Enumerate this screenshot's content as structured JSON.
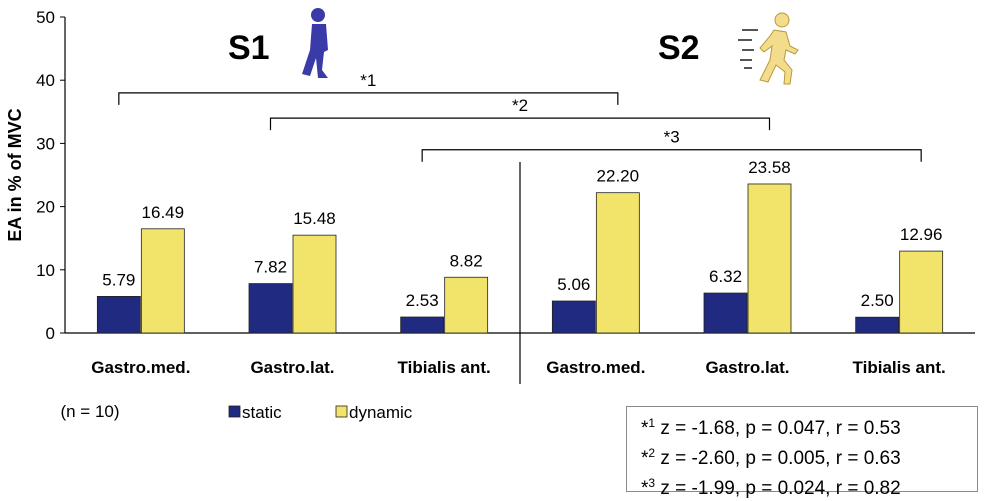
{
  "chart_data": {
    "type": "bar",
    "ylabel": "EA in % of MVC",
    "ylim": [
      0,
      50
    ],
    "yticks": [
      0,
      10,
      20,
      30,
      40,
      50
    ],
    "groups": [
      {
        "label": "S1",
        "figure_icon": "walking-person-icon",
        "figure_color": "#3a3aa8"
      },
      {
        "label": "S2",
        "figure_icon": "running-person-icon",
        "figure_color": "#f3dc8c"
      }
    ],
    "categories": [
      "Gastro.med.",
      "Gastro.lat.",
      "Tibialis ant.",
      "Gastro.med.",
      "Gastro.lat.",
      "Tibialis ant."
    ],
    "series": [
      {
        "name": "static",
        "color": "#1f2a80",
        "values": [
          5.79,
          7.82,
          2.53,
          5.06,
          6.32,
          2.5
        ],
        "labels": [
          "5.79",
          "7.82",
          "2.53",
          "5.06",
          "6.32",
          "2.50"
        ]
      },
      {
        "name": "dynamic",
        "color": "#f2e46a",
        "values": [
          16.49,
          15.48,
          8.82,
          22.2,
          23.58,
          12.96
        ],
        "labels": [
          "16.49",
          "15.48",
          "8.82",
          "22.20",
          "23.58",
          "12.96"
        ]
      }
    ],
    "brackets": [
      {
        "label": "*1",
        "from": 0,
        "to": 3,
        "y": 38
      },
      {
        "label": "*2",
        "from": 1,
        "to": 4,
        "y": 34
      },
      {
        "label": "*3",
        "from": 2,
        "to": 5,
        "y": 29
      }
    ],
    "note": "(n = 10)",
    "legend": {
      "placement": "bottom",
      "items": [
        "static",
        "dynamic"
      ]
    },
    "grid": false
  },
  "stats": [
    {
      "mark": "*",
      "sup": "1",
      "text": " z = -1.68, p = 0.047, r = 0.53"
    },
    {
      "mark": "*",
      "sup": "2",
      "text": " z = -2.60, p = 0.005, r = 0.63"
    },
    {
      "mark": "*",
      "sup": "3",
      "text": " z = -1.99, p = 0.024, r = 0.82"
    }
  ]
}
